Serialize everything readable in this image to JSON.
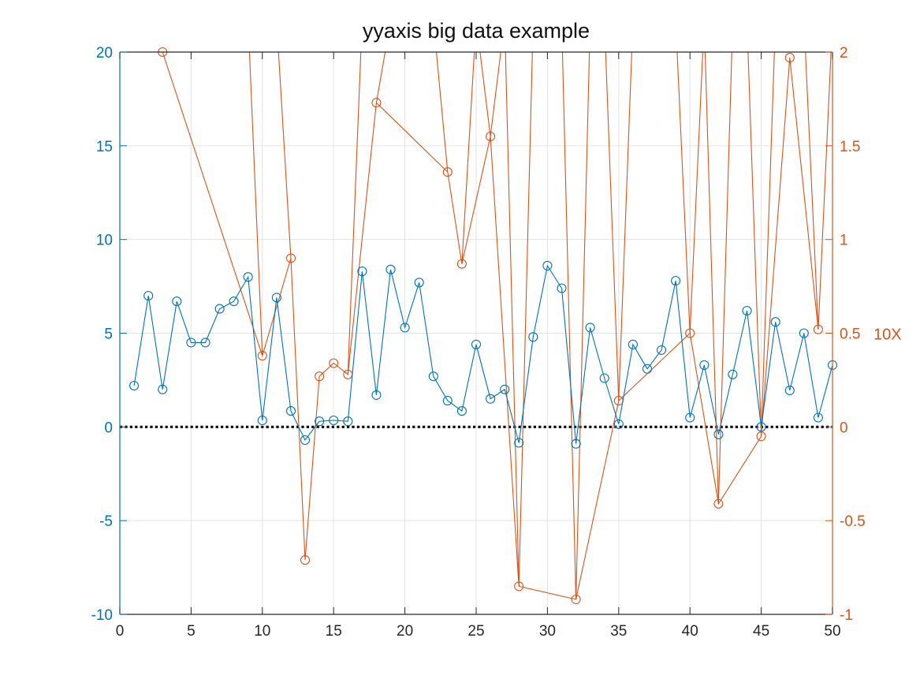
{
  "chart_data": {
    "type": "line",
    "title": "yyaxis  big data example",
    "xlim": [
      0,
      50
    ],
    "xticks": [
      0,
      5,
      10,
      15,
      20,
      25,
      30,
      35,
      40,
      45,
      50
    ],
    "grid": true,
    "left_axis": {
      "ylim": [
        -10,
        20
      ],
      "yticks": [
        -10,
        -5,
        0,
        5,
        10,
        15,
        20
      ],
      "color": "#0072BD"
    },
    "right_axis": {
      "ylim": [
        -1,
        2
      ],
      "yticks": [
        -1,
        -0.5,
        0,
        0.5,
        1,
        1.5,
        2
      ],
      "ylabel": "10X",
      "color": "#D95319"
    },
    "baseline": {
      "y": 0,
      "style": "dotted",
      "color": "#000000"
    },
    "series": [
      {
        "axis": "left",
        "color": "#0072BD",
        "marker": "circle",
        "x": [
          1,
          2,
          3,
          4,
          5,
          6,
          7,
          8,
          9,
          10,
          11,
          12,
          13,
          14,
          15,
          16,
          17,
          18,
          19,
          20,
          21,
          22,
          23,
          24,
          25,
          26,
          27,
          28,
          29,
          30,
          31,
          32,
          33,
          34,
          35,
          36,
          37,
          38,
          39,
          40,
          41,
          42,
          43,
          44,
          45,
          46,
          47,
          48,
          49,
          50
        ],
        "values": [
          2.2,
          7.0,
          2.0,
          6.7,
          4.5,
          4.5,
          6.3,
          6.7,
          8.0,
          0.35,
          6.9,
          0.85,
          -0.7,
          0.3,
          0.35,
          0.3,
          8.3,
          1.7,
          8.4,
          5.3,
          7.7,
          2.7,
          1.4,
          0.85,
          4.4,
          1.5,
          2.0,
          -0.85,
          4.8,
          8.6,
          7.4,
          -0.9,
          5.3,
          2.6,
          0.15,
          4.4,
          3.1,
          4.1,
          7.8,
          0.5,
          3.3,
          -0.4,
          2.8,
          6.2,
          0.0,
          5.6,
          1.95,
          5.0,
          0.5,
          3.3
        ]
      },
      {
        "axis": "right",
        "color": "#D95319",
        "marker": "circle",
        "x": [
          3,
          10,
          12,
          13,
          14,
          15,
          16,
          18,
          23,
          24,
          26,
          28,
          32,
          35,
          40,
          42,
          45,
          47,
          49
        ],
        "values": [
          2.0,
          0.38,
          0.9,
          -0.71,
          0.27,
          0.34,
          0.28,
          1.73,
          1.36,
          0.87,
          1.55,
          -0.85,
          -0.92,
          0.14,
          0.5,
          -0.41,
          -0.05,
          1.97,
          0.52
        ],
        "offscale": [
          {
            "x": 10,
            "direction": "up",
            "prev_x": 9
          },
          {
            "x": 12,
            "direction": "up",
            "prev_x": 11
          },
          {
            "x": 16,
            "direction": "up",
            "prev_x": 17
          },
          {
            "x": 18,
            "direction": "up",
            "prev_x": 19
          },
          {
            "x": 23,
            "direction": "up",
            "prev_x": 22
          },
          {
            "x": 24,
            "direction": "up",
            "prev_x": 25
          },
          {
            "x": 26,
            "direction": "up",
            "prev_x": 25
          },
          {
            "x": 26,
            "direction": "up",
            "prev_x": 27
          },
          {
            "x": 28,
            "direction": "up",
            "prev_x": 27
          },
          {
            "x": 28,
            "direction": "up",
            "prev_x": 29
          },
          {
            "x": 32,
            "direction": "up",
            "prev_x": 31
          },
          {
            "x": 32,
            "direction": "up",
            "prev_x": 33
          },
          {
            "x": 35,
            "direction": "up",
            "prev_x": 34
          },
          {
            "x": 35,
            "direction": "up",
            "prev_x": 36
          },
          {
            "x": 40,
            "direction": "up",
            "prev_x": 39
          },
          {
            "x": 40,
            "direction": "up",
            "prev_x": 41
          },
          {
            "x": 42,
            "direction": "up",
            "prev_x": 41
          },
          {
            "x": 42,
            "direction": "up",
            "prev_x": 43
          },
          {
            "x": 45,
            "direction": "up",
            "prev_x": 44
          },
          {
            "x": 45,
            "direction": "up",
            "prev_x": 46
          },
          {
            "x": 49,
            "direction": "up",
            "prev_x": 48
          },
          {
            "x": 49,
            "direction": "up",
            "prev_x": 50
          }
        ]
      }
    ]
  }
}
